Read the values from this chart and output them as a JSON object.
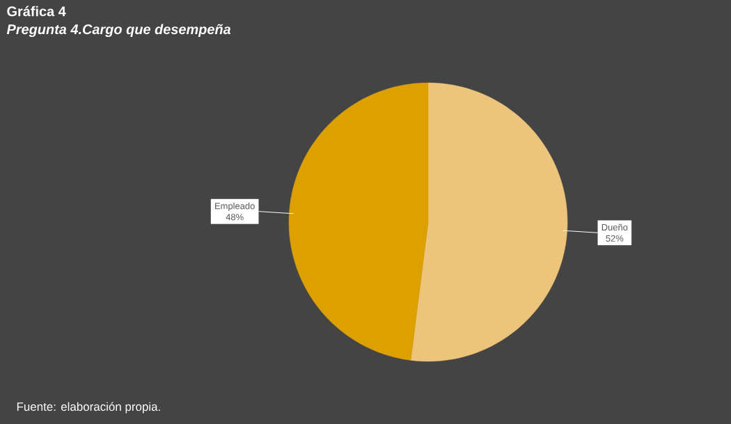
{
  "chart_data": {
    "type": "pie",
    "title": "Gráfica 4",
    "subtitle": "Pregunta 4.Cargo que desempeña",
    "categories": [
      "Dueño",
      "Empleado"
    ],
    "values": [
      52,
      48
    ],
    "colors": [
      "#ecc47c",
      "#dca000"
    ],
    "value_labels": [
      "52%",
      "48%"
    ],
    "annotations": [
      "Fuente: elaboración propia."
    ]
  }
}
